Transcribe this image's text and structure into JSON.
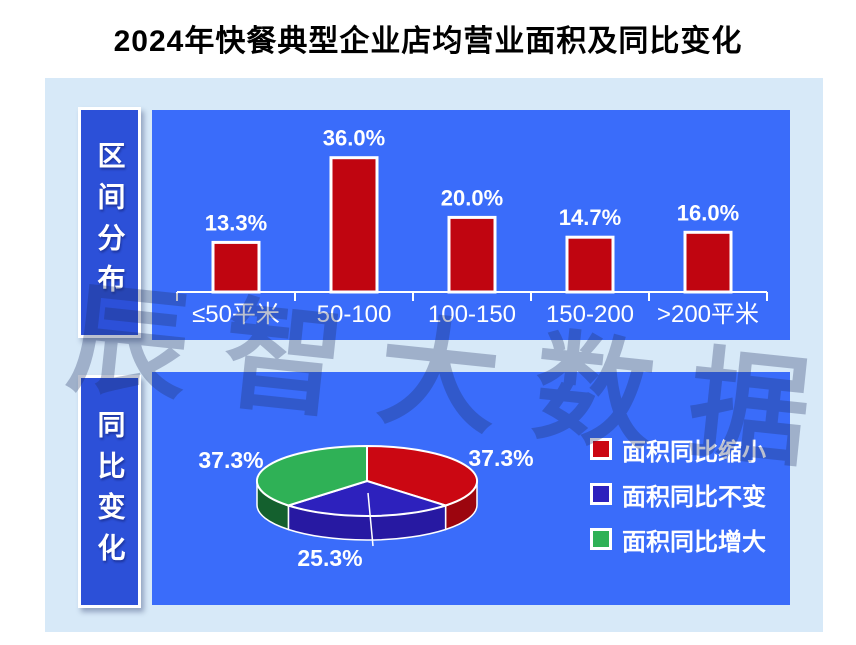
{
  "title": "2024年快餐典型企业店均营业面积及同比变化",
  "watermark": "辰智大数据",
  "sections": [
    {
      "side_label": "区间分布"
    },
    {
      "side_label": "同比变化"
    }
  ],
  "colors": {
    "canvas_bg": "#d7e9f8",
    "panel_bg": "#3a6cfa",
    "side_label_bg": "#2c50d8",
    "bar_red": "#c00510",
    "axis": "#ffffff",
    "text": "#ffffff"
  },
  "chart_data": [
    {
      "type": "bar",
      "title": "区间分布",
      "categories": [
        "≤50平米",
        "50-100",
        "100-150",
        "150-200",
        ">200平米"
      ],
      "values": [
        13.3,
        36.0,
        20.0,
        14.7,
        16.0
      ],
      "value_labels": [
        "13.3%",
        "36.0%",
        "20.0%",
        "14.7%",
        "16.0%"
      ],
      "unit": "%",
      "ylim": [
        0,
        40
      ],
      "bar_color": "#c00510",
      "grid": "off",
      "label_position": "above-bar"
    },
    {
      "type": "pie",
      "title": "同比变化",
      "style": "3d",
      "start_angle": "12-oclock",
      "direction": "clockwise",
      "legend_position": "right",
      "slices": [
        {
          "label": "面积同比缩小",
          "value": 37.3,
          "display": "37.3%",
          "color": "#cb0712",
          "side_color": "#9c050e"
        },
        {
          "label": "面积同比不变",
          "value": 25.3,
          "display": "25.3%",
          "color": "#2d21bd",
          "side_color": "#2719a2"
        },
        {
          "label": "面积同比增大",
          "value": 37.3,
          "display": "37.3%",
          "color": "#2fb156",
          "side_color": "#14602e"
        }
      ]
    }
  ]
}
